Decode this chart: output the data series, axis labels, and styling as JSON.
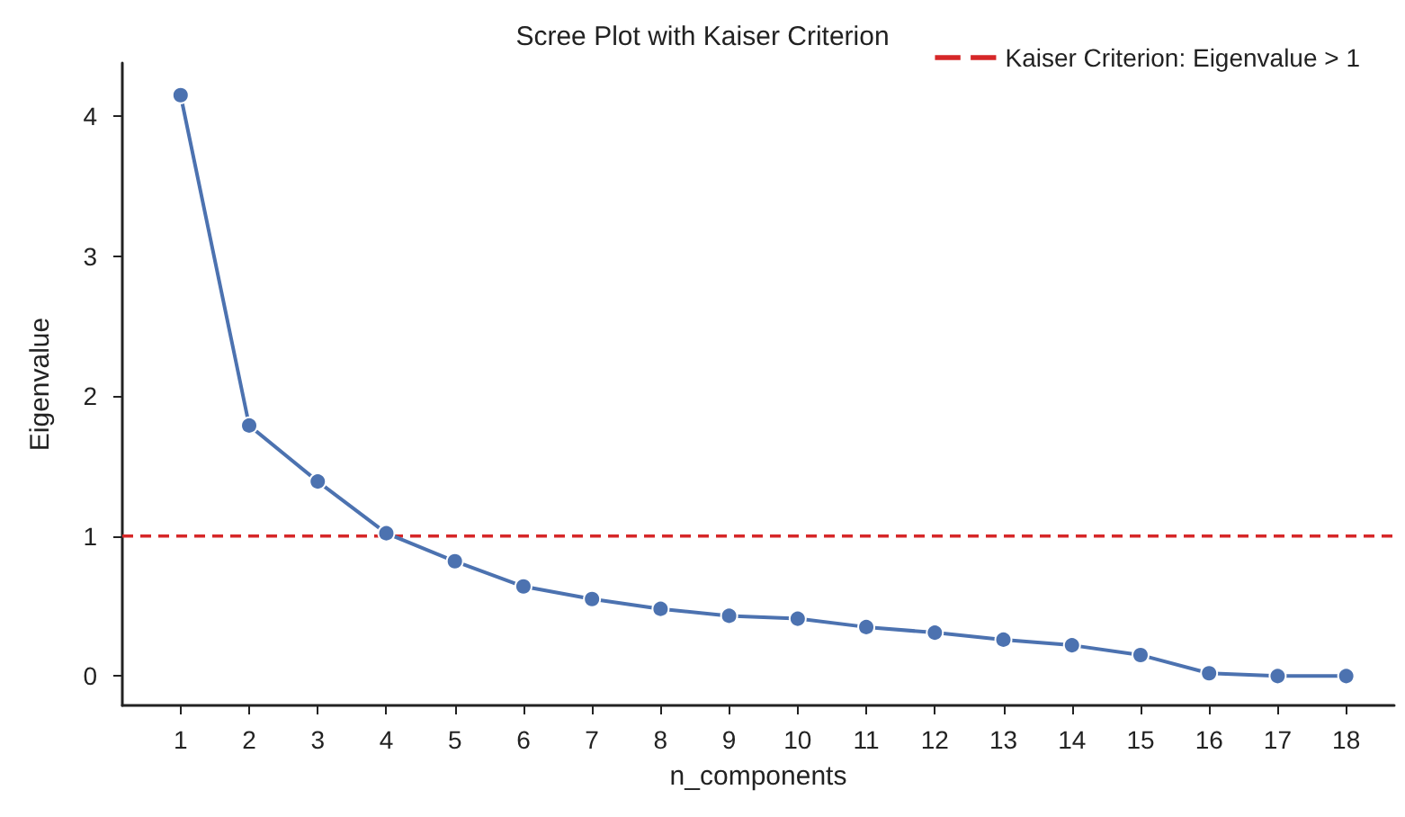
{
  "chart_data": {
    "type": "line",
    "title": "Scree Plot with Kaiser Criterion",
    "xlabel": "n_components",
    "ylabel": "Eigenvalue",
    "x": [
      1,
      2,
      3,
      4,
      5,
      6,
      7,
      8,
      9,
      10,
      11,
      12,
      13,
      14,
      15,
      16,
      17,
      18
    ],
    "series": [
      {
        "color": "#4c72b0",
        "values": [
          4.15,
          1.79,
          1.39,
          1.02,
          0.82,
          0.64,
          0.55,
          0.48,
          0.43,
          0.41,
          0.35,
          0.31,
          0.26,
          0.22,
          0.15,
          0.02,
          0.0,
          0.0
        ]
      }
    ],
    "xlim": [
      0.15,
      18.7
    ],
    "xticks": [
      1,
      2,
      3,
      4,
      5,
      6,
      7,
      8,
      9,
      10,
      11,
      12,
      13,
      14,
      15,
      16,
      17,
      18
    ],
    "ylim": [
      -0.21,
      4.38
    ],
    "yticks": [
      0,
      1,
      2,
      3,
      4
    ],
    "ref_lines": [
      {
        "axis": "y",
        "value": 1,
        "label": "Kaiser Criterion: Eigenvalue > 1",
        "color": "#d62728",
        "line_style": "dashed"
      }
    ],
    "grid": false,
    "legend": "top right",
    "marker": "circle",
    "line_style": "solid"
  }
}
